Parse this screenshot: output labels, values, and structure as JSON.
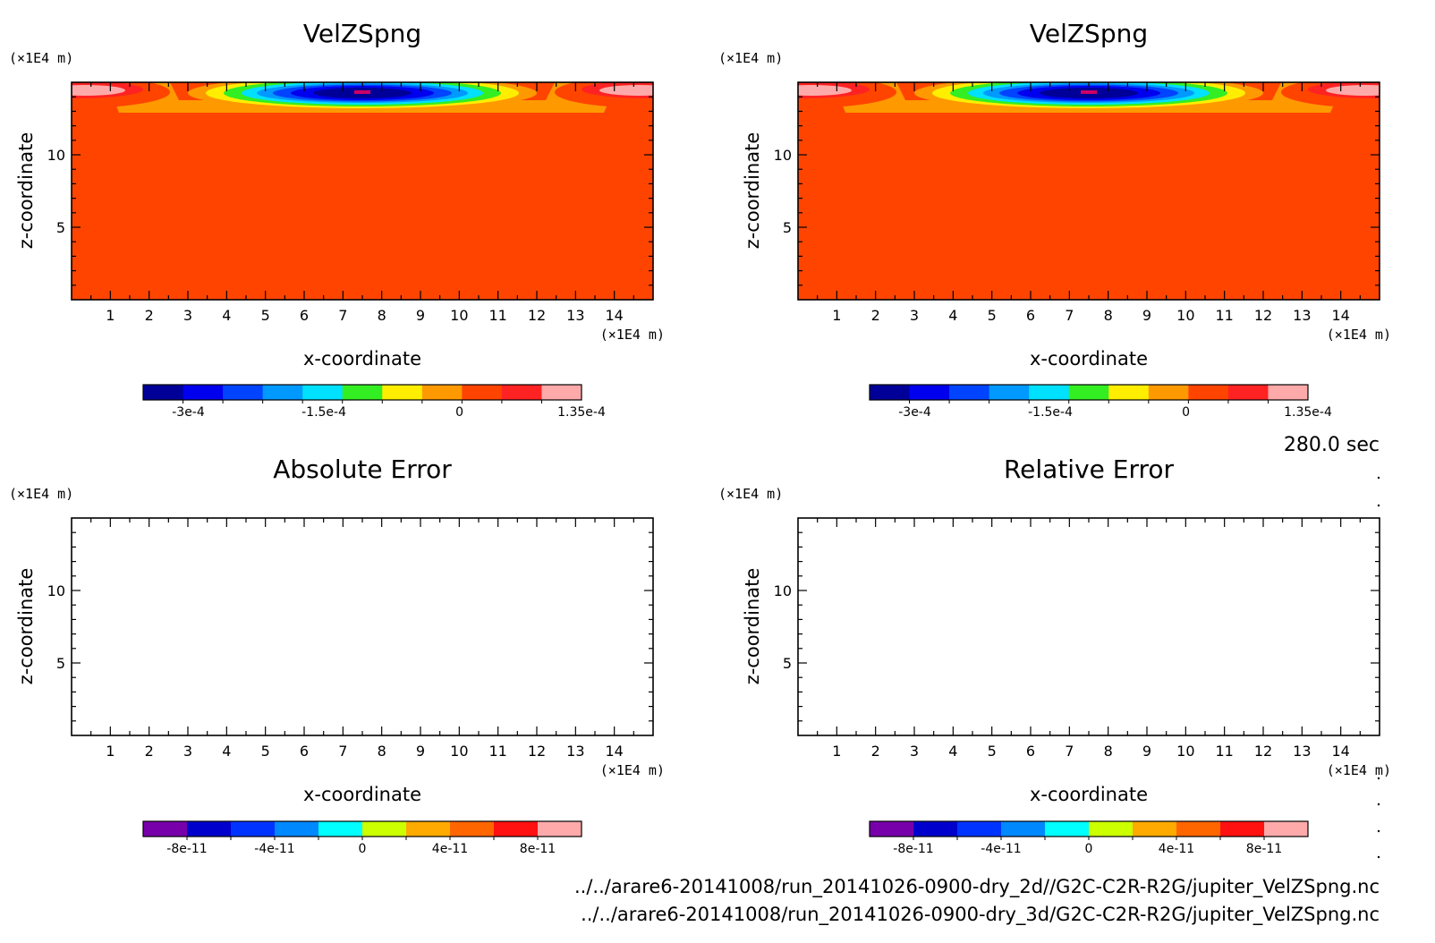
{
  "time_label": "280.0 sec",
  "source_files": [
    "../../arare6-20141008/run_20141026-0900-dry_2d//G2C-C2R-R2G/jupiter_VelZSpng.nc",
    "../../arare6-20141008/run_20141026-0900-dry_3d/G2C-C2R-R2G/jupiter_VelZSpng.nc"
  ],
  "chart_data": [
    {
      "type": "heatmap",
      "title": "VelZSpng",
      "xlabel": "x-coordinate",
      "ylabel": "z-coordinate",
      "x_unit": "(×1E4 m)",
      "y_unit": "(×1E4 m)",
      "xlim": [
        0,
        15
      ],
      "ylim": [
        0,
        15
      ],
      "x_ticks": [
        "1",
        "2",
        "3",
        "4",
        "5",
        "6",
        "7",
        "8",
        "9",
        "10",
        "11",
        "12",
        "13",
        "14"
      ],
      "y_ticks": [
        "5",
        "10"
      ],
      "field": "uniform ~0 below z≈13, negative sponge-layer velocity core centred near x≈7.5, z≈14.5 (min ≈ -3.4e-4), small positive lobes near the lateral top corners (max ≈ 1.35e-4)",
      "colorbar": {
        "ticks": [
          "-3e-4",
          "-1.5e-4",
          "0",
          "1.35e-4"
        ],
        "colors": [
          "#000099",
          "#0000ee",
          "#0044ff",
          "#0099ff",
          "#00e0ff",
          "#33ee22",
          "#ffee00",
          "#ff9900",
          "#ff4400",
          "#ff2222",
          "#ffaaaa"
        ]
      }
    },
    {
      "type": "heatmap",
      "title": "VelZSpng",
      "xlabel": "x-coordinate",
      "ylabel": "z-coordinate",
      "x_unit": "(×1E4 m)",
      "y_unit": "(×1E4 m)",
      "xlim": [
        0,
        15
      ],
      "ylim": [
        0,
        15
      ],
      "x_ticks": [
        "1",
        "2",
        "3",
        "4",
        "5",
        "6",
        "7",
        "8",
        "9",
        "10",
        "11",
        "12",
        "13",
        "14"
      ],
      "y_ticks": [
        "5",
        "10"
      ],
      "field": "identical to the 2d run: negative core near top centre, positive lobes at top corners",
      "colorbar": {
        "ticks": [
          "-3e-4",
          "-1.5e-4",
          "0",
          "1.35e-4"
        ],
        "colors": [
          "#000099",
          "#0000ee",
          "#0044ff",
          "#0099ff",
          "#00e0ff",
          "#33ee22",
          "#ffee00",
          "#ff9900",
          "#ff4400",
          "#ff2222",
          "#ffaaaa"
        ]
      }
    },
    {
      "type": "heatmap",
      "title": "Absolute Error",
      "xlabel": "x-coordinate",
      "ylabel": "z-coordinate",
      "x_unit": "(×1E4 m)",
      "y_unit": "(×1E4 m)",
      "xlim": [
        0,
        15
      ],
      "ylim": [
        0,
        15
      ],
      "x_ticks": [
        "1",
        "2",
        "3",
        "4",
        "5",
        "6",
        "7",
        "8",
        "9",
        "10",
        "11",
        "12",
        "13",
        "14"
      ],
      "y_ticks": [
        "5",
        "10"
      ],
      "field": "empty",
      "colorbar": {
        "ticks": [
          "-8e-11",
          "-4e-11",
          "0",
          "4e-11",
          "8e-11"
        ],
        "colors": [
          "#7700aa",
          "#0000cc",
          "#0033ff",
          "#0088ff",
          "#00ffff",
          "#ccff00",
          "#ffaa00",
          "#ff6600",
          "#ff1111",
          "#ffaaaa"
        ]
      }
    },
    {
      "type": "heatmap",
      "title": "Relative Error",
      "xlabel": "x-coordinate",
      "ylabel": "z-coordinate",
      "x_unit": "(×1E4 m)",
      "y_unit": "(×1E4 m)",
      "xlim": [
        0,
        15
      ],
      "ylim": [
        0,
        15
      ],
      "x_ticks": [
        "1",
        "2",
        "3",
        "4",
        "5",
        "6",
        "7",
        "8",
        "9",
        "10",
        "11",
        "12",
        "13",
        "14"
      ],
      "y_ticks": [
        "5",
        "10"
      ],
      "field": "empty",
      "colorbar": {
        "ticks": [
          "-8e-11",
          "-4e-11",
          "0",
          "4e-11",
          "8e-11"
        ],
        "colors": [
          "#7700aa",
          "#0000cc",
          "#0033ff",
          "#0088ff",
          "#00ffff",
          "#ccff00",
          "#ffaa00",
          "#ff6600",
          "#ff1111",
          "#ffaaaa"
        ]
      }
    }
  ]
}
